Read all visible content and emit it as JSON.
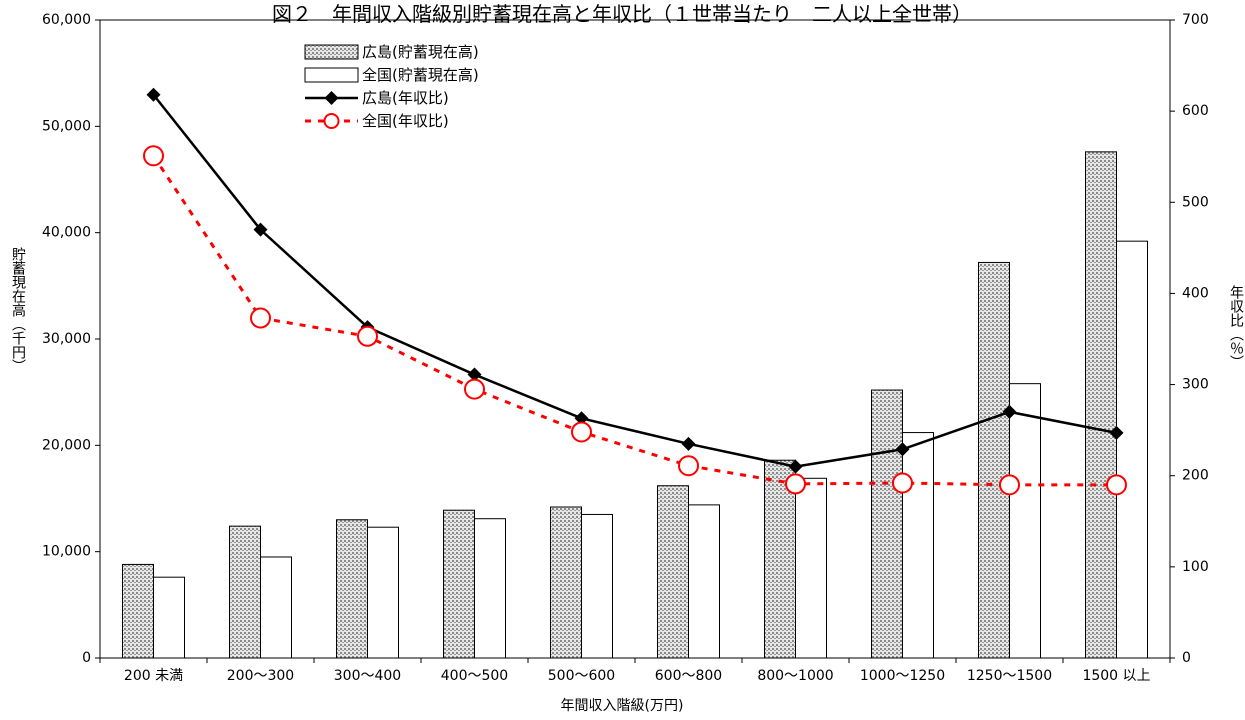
{
  "chart_data": {
    "type": "bar",
    "title": "図２　年間収入階級別貯蓄現在高と年収比（１世帯当たり　二人以上全世帯）",
    "categories": [
      "200 未満",
      "200～300",
      "300～400",
      "400～500",
      "500～600",
      "600～800",
      "800～1000",
      "1000～1250",
      "1250～1500",
      "1500 以上"
    ],
    "xlabel": "年間収入階級(万円)",
    "ylabel_left": "貯蓄現在高（千円）",
    "ylabel_right": "年収比（％）",
    "ylim_left": [
      0,
      60000
    ],
    "ylim_right": [
      0,
      700
    ],
    "yticks_left": [
      "0",
      "10,000",
      "20,000",
      "30,000",
      "40,000",
      "50,000",
      "60,000"
    ],
    "yticks_right": [
      "0",
      "100",
      "200",
      "300",
      "400",
      "500",
      "600",
      "700"
    ],
    "legend_position": "top-left",
    "bar_series": [
      {
        "name": "広島(貯蓄現在高)",
        "axis": "left",
        "pattern": "hatched",
        "values": [
          8800,
          12400,
          13000,
          13900,
          14200,
          16200,
          18600,
          25200,
          37200,
          47600
        ]
      },
      {
        "name": "全国(貯蓄現在高)",
        "axis": "left",
        "pattern": "white",
        "values": [
          7600,
          9500,
          12300,
          13100,
          13500,
          14400,
          16900,
          21200,
          25800,
          39200
        ]
      }
    ],
    "line_series": [
      {
        "name": "広島(年収比)",
        "axis": "right",
        "color": "#000000",
        "style": "solid",
        "marker": "diamond",
        "values": [
          618,
          470,
          363,
          311,
          263,
          235,
          210,
          229,
          270,
          247
        ]
      },
      {
        "name": "全国(年収比)",
        "axis": "right",
        "color": "#ff0000",
        "style": "dashed",
        "marker": "circle",
        "values": [
          551,
          373,
          353,
          295,
          248,
          211,
          191,
          192,
          190,
          190
        ]
      }
    ]
  }
}
